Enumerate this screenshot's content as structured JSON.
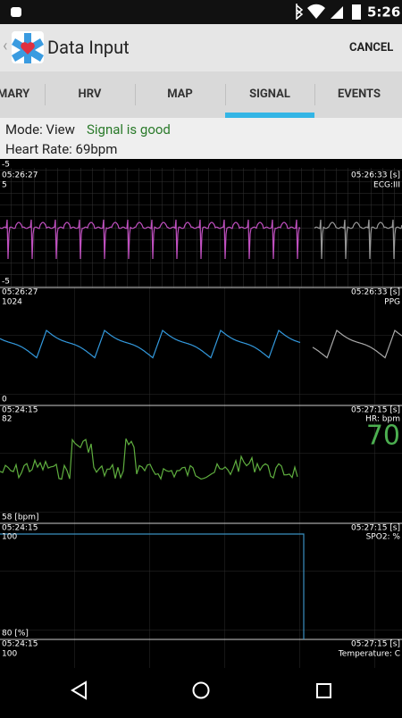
{
  "status_bar": {
    "time": "5:26"
  },
  "app_bar": {
    "title": "Data Input",
    "action": "CANCEL"
  },
  "tabs": [
    "MARY",
    "HRV",
    "MAP",
    "SIGNAL",
    "EVENTS"
  ],
  "status": {
    "mode": "Mode: View",
    "signal": "Signal is good",
    "heart_rate": "Heart Rate: 69bpm"
  },
  "panels": [
    {
      "scale_top": "-5",
      "start_time": "05:26:27",
      "max": "5",
      "end_time": "05:26:33 [s]",
      "name": "ECG:III",
      "min": "-5"
    },
    {
      "start_time": "05:26:27",
      "max": "1024",
      "end_time": "05:26:33 [s]",
      "name": "PPG",
      "min": "0"
    },
    {
      "start_time": "05:24:15",
      "max": "82",
      "end_time": "05:27:15 [s]",
      "name": "HR: bpm",
      "current": "70",
      "min": "58 [bpm]"
    },
    {
      "start_time": "05:24:15",
      "max": "100",
      "end_time": "05:27:15 [s]",
      "name": "SPO2: %",
      "min": "80 [%]"
    },
    {
      "start_time": "05:24:15",
      "max": "100",
      "end_time": "05:27:15 [s]",
      "name": "Temperature: C"
    }
  ]
}
